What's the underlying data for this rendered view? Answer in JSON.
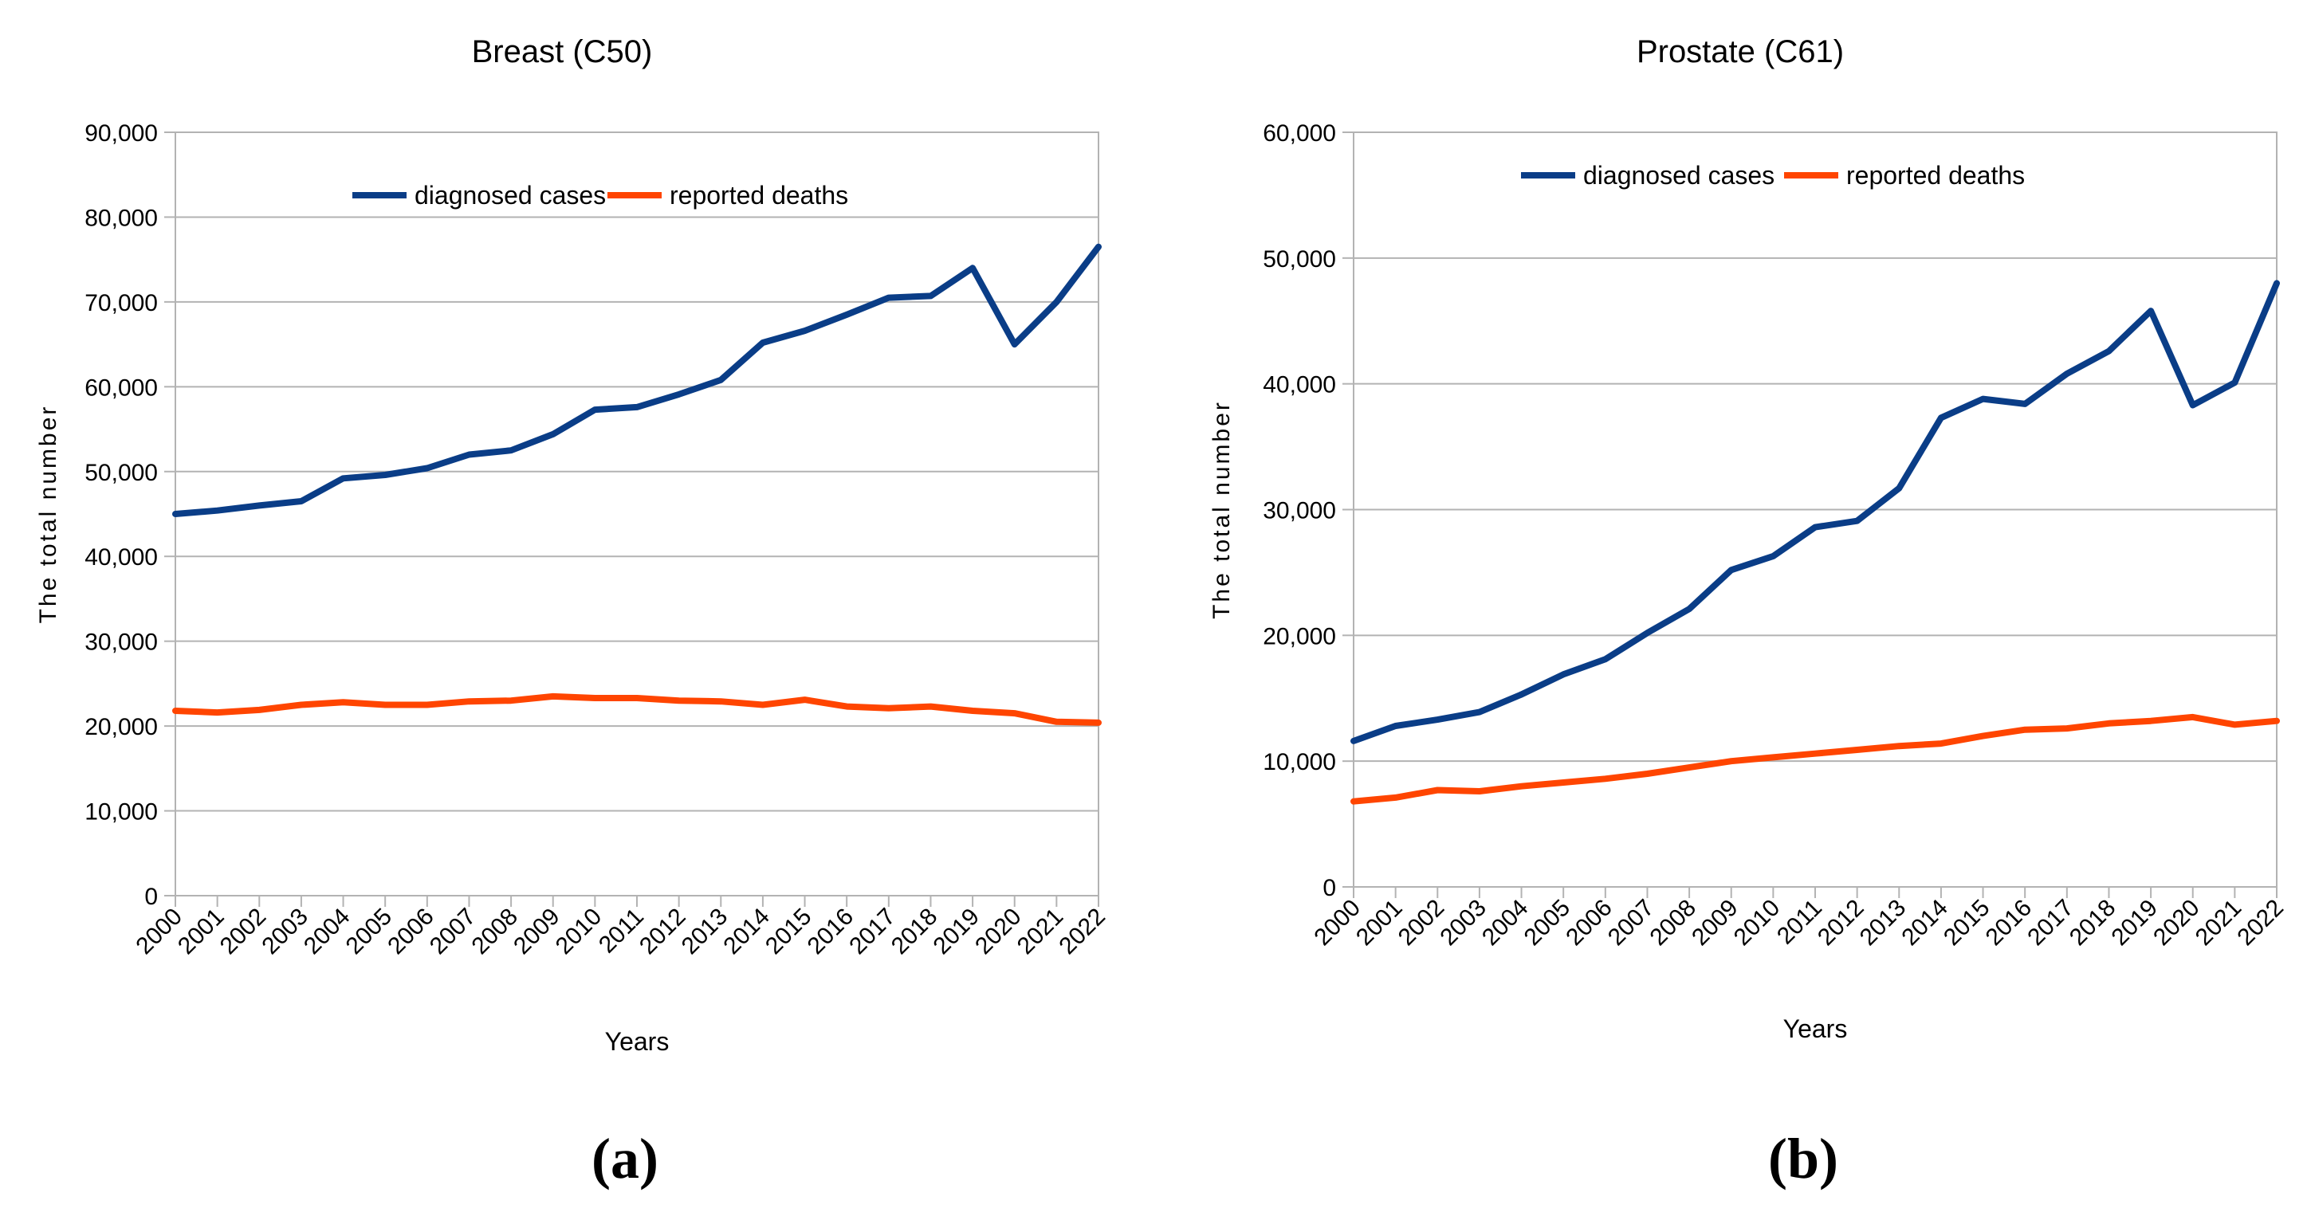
{
  "chart_data": [
    {
      "type": "line",
      "title": "Breast (C50)",
      "xlabel": "Years",
      "ylabel": "The total number",
      "panel_label": "(a)",
      "categories": [
        "2000",
        "2001",
        "2002",
        "2003",
        "2004",
        "2005",
        "2006",
        "2007",
        "2008",
        "2009",
        "2010",
        "2011",
        "2012",
        "2013",
        "2014",
        "2015",
        "2016",
        "2017",
        "2018",
        "2019",
        "2020",
        "2021",
        "2022"
      ],
      "ylim": [
        0,
        90000
      ],
      "yticks": [
        0,
        10000,
        20000,
        30000,
        40000,
        50000,
        60000,
        70000,
        80000,
        90000
      ],
      "ytick_labels": [
        "0",
        "10,000",
        "20,000",
        "30,000",
        "40,000",
        "50,000",
        "60,000",
        "70,000",
        "80,000",
        "90,000"
      ],
      "grid": true,
      "legend_position": "top-center",
      "series": [
        {
          "name": "diagnosed cases",
          "color": "#0a3d87",
          "values": [
            45000,
            45400,
            46000,
            46500,
            49200,
            49600,
            50400,
            52000,
            52500,
            54400,
            57300,
            57600,
            59100,
            60800,
            65200,
            66600,
            68500,
            70500,
            70700,
            74000,
            65000,
            70000,
            76500
          ]
        },
        {
          "name": "reported deaths",
          "color": "#ff4500",
          "values": [
            21800,
            21600,
            21900,
            22500,
            22800,
            22500,
            22500,
            22900,
            23000,
            23500,
            23300,
            23300,
            23000,
            22900,
            22500,
            23100,
            22300,
            22100,
            22300,
            21800,
            21500,
            20500,
            20400
          ]
        }
      ]
    },
    {
      "type": "line",
      "title": "Prostate (C61)",
      "xlabel": "Years",
      "ylabel": "The total number",
      "panel_label": "(b)",
      "categories": [
        "2000",
        "2001",
        "2002",
        "2003",
        "2004",
        "2005",
        "2006",
        "2007",
        "2008",
        "2009",
        "2010",
        "2011",
        "2012",
        "2013",
        "2014",
        "2015",
        "2016",
        "2017",
        "2018",
        "2019",
        "2020",
        "2021",
        "2022"
      ],
      "ylim": [
        0,
        60000
      ],
      "yticks": [
        0,
        10000,
        20000,
        30000,
        40000,
        50000,
        60000
      ],
      "ytick_labels": [
        "0",
        "10,000",
        "20,000",
        "30,000",
        "40,000",
        "50,000",
        "60,000"
      ],
      "grid": true,
      "legend_position": "top-center",
      "series": [
        {
          "name": "diagnosed cases",
          "color": "#0a3d87",
          "values": [
            11600,
            12800,
            13300,
            13900,
            15300,
            16900,
            18100,
            20200,
            22100,
            25200,
            26300,
            28600,
            29100,
            31700,
            37300,
            38800,
            38400,
            40800,
            42600,
            45800,
            38300,
            40100,
            48000
          ]
        },
        {
          "name": "reported deaths",
          "color": "#ff4500",
          "values": [
            6800,
            7100,
            7700,
            7600,
            8000,
            8300,
            8600,
            9000,
            9500,
            10000,
            10300,
            10600,
            10900,
            11200,
            11400,
            12000,
            12500,
            12600,
            13000,
            13200,
            13500,
            12900,
            13200
          ]
        }
      ]
    }
  ]
}
